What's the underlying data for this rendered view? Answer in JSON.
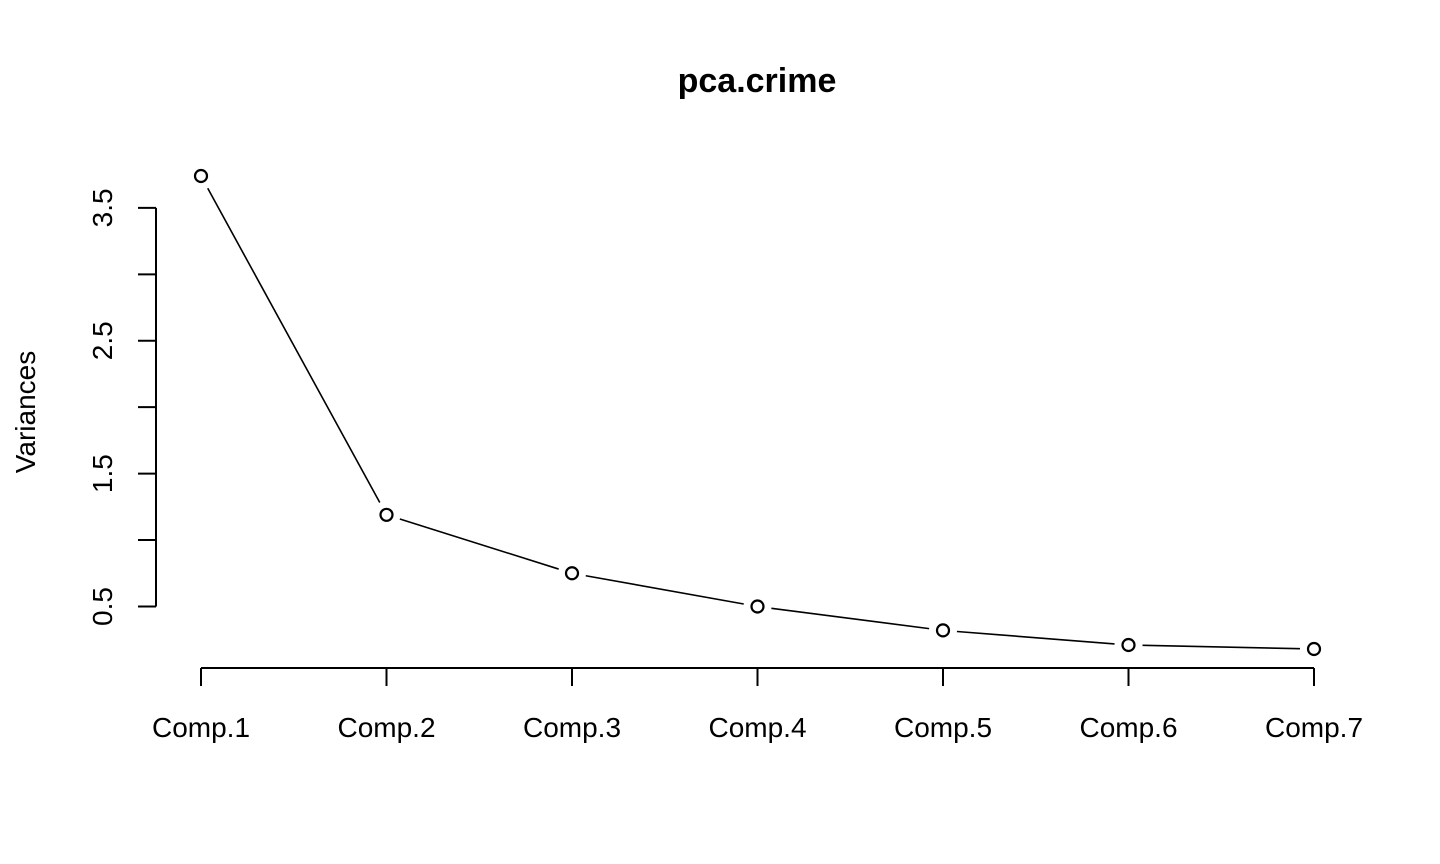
{
  "chart_data": {
    "type": "line",
    "title": "pca.crime",
    "xlabel": "",
    "ylabel": "Variances",
    "categories": [
      "Comp.1",
      "Comp.2",
      "Comp.3",
      "Comp.4",
      "Comp.5",
      "Comp.6",
      "Comp.7"
    ],
    "values": [
      3.74,
      1.19,
      0.75,
      0.5,
      0.32,
      0.21,
      0.18
    ],
    "y_ticks": [
      0.5,
      1.0,
      1.5,
      2.0,
      2.5,
      3.0,
      3.5
    ],
    "y_tick_labels": [
      "0.5",
      "",
      "1.5",
      "",
      "2.5",
      "",
      "3.5"
    ],
    "ylim": [
      0.18,
      3.74
    ],
    "grid": false,
    "legend": "none",
    "marker": "open-circle",
    "line_color": "#000000"
  }
}
